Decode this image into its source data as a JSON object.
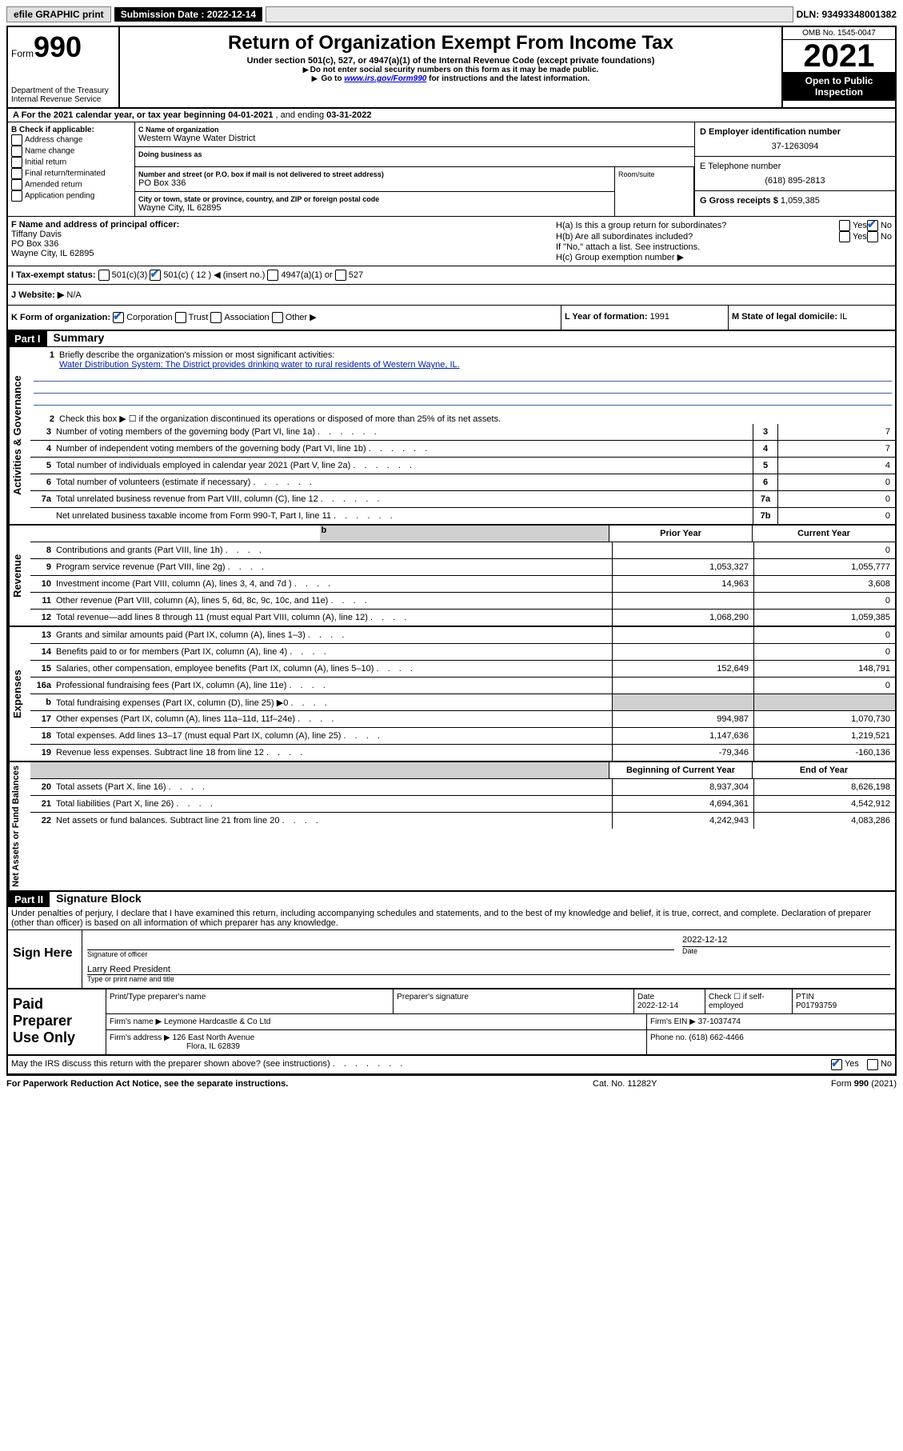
{
  "topbar": {
    "efile": "efile GRAPHIC print",
    "sub_label": "Submission Date : 2022-12-14",
    "dln": "DLN: 93493348001382"
  },
  "header": {
    "form_prefix": "Form",
    "form_num": "990",
    "dept": "Department of the Treasury",
    "irs": "Internal Revenue Service",
    "title": "Return of Organization Exempt From Income Tax",
    "sub1": "Under section 501(c), 527, or 4947(a)(1) of the Internal Revenue Code (except private foundations)",
    "sub2": "Do not enter social security numbers on this form as it may be made public.",
    "sub3_pre": "Go to ",
    "sub3_link": "www.irs.gov/Form990",
    "sub3_post": " for instructions and the latest information.",
    "omb": "OMB No. 1545-0047",
    "year": "2021",
    "open": "Open to Public Inspection"
  },
  "row_a": {
    "label": "A For the 2021 calendar year, or tax year beginning ",
    "begin": "04-01-2021",
    "mid": " , and ending ",
    "end": "03-31-2022"
  },
  "b": {
    "label": "B Check if applicable:",
    "opts": [
      "Address change",
      "Name change",
      "Initial return",
      "Final return/terminated",
      "Amended return",
      "Application pending"
    ]
  },
  "c": {
    "name_label": "C Name of organization",
    "name": "Western Wayne Water District",
    "dba_label": "Doing business as",
    "street_label": "Number and street (or P.O. box if mail is not delivered to street address)",
    "room_label": "Room/suite",
    "street": "PO Box 336",
    "city_label": "City or town, state or province, country, and ZIP or foreign postal code",
    "city": "Wayne City, IL  62895"
  },
  "d": {
    "label": "D Employer identification number",
    "ein": "37-1263094"
  },
  "e": {
    "label": "E Telephone number",
    "tel": "(618) 895-2813"
  },
  "g": {
    "label": "G Gross receipts $ ",
    "val": "1,059,385"
  },
  "f": {
    "label": "F Name and address of principal officer:",
    "name": "Tiffany Davis",
    "addr1": "PO Box 336",
    "addr2": "Wayne City, IL  62895"
  },
  "h": {
    "a_label": "H(a)  Is this a group return for subordinates?",
    "b_label": "H(b)  Are all subordinates included?",
    "b_note": "If \"No,\" attach a list. See instructions.",
    "c_label": "H(c)  Group exemption number ▶"
  },
  "i": {
    "label": "I  Tax-exempt status:",
    "opt1": "501(c)(3)",
    "opt2": "501(c) ( 12 ) ◀ (insert no.)",
    "opt3": "4947(a)(1) or",
    "opt4": "527"
  },
  "j": {
    "label": "J  Website: ▶",
    "val": "N/A"
  },
  "k": {
    "label": "K Form of organization:",
    "opts": [
      "Corporation",
      "Trust",
      "Association",
      "Other ▶"
    ]
  },
  "l": {
    "label": "L Year of formation: ",
    "val": "1991"
  },
  "m": {
    "label": "M State of legal domicile: ",
    "val": "IL"
  },
  "part1": {
    "header": "Part I",
    "title": "Summary",
    "side_gov": "Activities & Governance",
    "side_rev": "Revenue",
    "side_exp": "Expenses",
    "side_net": "Net Assets or Fund Balances",
    "l1_label": "Briefly describe the organization's mission or most significant activities:",
    "l1_text": "Water Distribution System: The District provides drinking water to rural residents of Western Wayne, IL.",
    "l2": "Check this box ▶ ☐  if the organization discontinued its operations or disposed of more than 25% of its net assets.",
    "lines_single": [
      {
        "n": "3",
        "t": "Number of voting members of the governing body (Part VI, line 1a)",
        "box": "3",
        "v": "7"
      },
      {
        "n": "4",
        "t": "Number of independent voting members of the governing body (Part VI, line 1b)",
        "box": "4",
        "v": "7"
      },
      {
        "n": "5",
        "t": "Total number of individuals employed in calendar year 2021 (Part V, line 2a)",
        "box": "5",
        "v": "4"
      },
      {
        "n": "6",
        "t": "Total number of volunteers (estimate if necessary)",
        "box": "6",
        "v": "0"
      },
      {
        "n": "7a",
        "t": "Total unrelated business revenue from Part VIII, column (C), line 12",
        "box": "7a",
        "v": "0"
      },
      {
        "n": "",
        "t": "Net unrelated business taxable income from Form 990-T, Part I, line 11",
        "box": "7b",
        "v": "0"
      }
    ],
    "col_prior": "Prior Year",
    "col_current": "Current Year",
    "lines_rev": [
      {
        "n": "8",
        "t": "Contributions and grants (Part VIII, line 1h)",
        "p": "",
        "c": "0"
      },
      {
        "n": "9",
        "t": "Program service revenue (Part VIII, line 2g)",
        "p": "1,053,327",
        "c": "1,055,777"
      },
      {
        "n": "10",
        "t": "Investment income (Part VIII, column (A), lines 3, 4, and 7d )",
        "p": "14,963",
        "c": "3,608"
      },
      {
        "n": "11",
        "t": "Other revenue (Part VIII, column (A), lines 5, 6d, 8c, 9c, 10c, and 11e)",
        "p": "",
        "c": "0"
      },
      {
        "n": "12",
        "t": "Total revenue—add lines 8 through 11 (must equal Part VIII, column (A), line 12)",
        "p": "1,068,290",
        "c": "1,059,385"
      }
    ],
    "lines_exp": [
      {
        "n": "13",
        "t": "Grants and similar amounts paid (Part IX, column (A), lines 1–3)",
        "p": "",
        "c": "0"
      },
      {
        "n": "14",
        "t": "Benefits paid to or for members (Part IX, column (A), line 4)",
        "p": "",
        "c": "0"
      },
      {
        "n": "15",
        "t": "Salaries, other compensation, employee benefits (Part IX, column (A), lines 5–10)",
        "p": "152,649",
        "c": "148,791"
      },
      {
        "n": "16a",
        "t": "Professional fundraising fees (Part IX, column (A), line 11e)",
        "p": "",
        "c": "0"
      },
      {
        "n": "b",
        "t": "Total fundraising expenses (Part IX, column (D), line 25) ▶0",
        "p": "SHADE",
        "c": "SHADE"
      },
      {
        "n": "17",
        "t": "Other expenses (Part IX, column (A), lines 11a–11d, 11f–24e)",
        "p": "994,987",
        "c": "1,070,730"
      },
      {
        "n": "18",
        "t": "Total expenses. Add lines 13–17 (must equal Part IX, column (A), line 25)",
        "p": "1,147,636",
        "c": "1,219,521"
      },
      {
        "n": "19",
        "t": "Revenue less expenses. Subtract line 18 from line 12",
        "p": "-79,346",
        "c": "-160,136"
      }
    ],
    "col_begin": "Beginning of Current Year",
    "col_end": "End of Year",
    "lines_net": [
      {
        "n": "20",
        "t": "Total assets (Part X, line 16)",
        "p": "8,937,304",
        "c": "8,626,198"
      },
      {
        "n": "21",
        "t": "Total liabilities (Part X, line 26)",
        "p": "4,694,361",
        "c": "4,542,912"
      },
      {
        "n": "22",
        "t": "Net assets or fund balances. Subtract line 21 from line 20",
        "p": "4,242,943",
        "c": "4,083,286"
      }
    ]
  },
  "part2": {
    "header": "Part II",
    "title": "Signature Block",
    "decl": "Under penalties of perjury, I declare that I have examined this return, including accompanying schedules and statements, and to the best of my knowledge and belief, it is true, correct, and complete. Declaration of preparer (other than officer) is based on all information of which preparer has any knowledge.",
    "sign_here": "Sign Here",
    "sig_officer": "Signature of officer",
    "sig_date": "2022-12-12",
    "date_label": "Date",
    "officer_name": "Larry Reed  President",
    "name_label": "Type or print name and title",
    "paid_prep": "Paid Preparer Use Only",
    "prep_name_label": "Print/Type preparer's name",
    "prep_sig_label": "Preparer's signature",
    "prep_date_label": "Date",
    "prep_date": "2022-12-14",
    "check_self": "Check ☐ if self-employed",
    "ptin_label": "PTIN",
    "ptin": "P01793759",
    "firm_name_label": "Firm's name      ▶",
    "firm_name": "Leymone Hardcastle & Co Ltd",
    "firm_ein_label": "Firm's EIN ▶",
    "firm_ein": "37-1037474",
    "firm_addr_label": "Firm's address ▶",
    "firm_addr1": "126 East North Avenue",
    "firm_addr2": "Flora, IL  62839",
    "phone_label": "Phone no. ",
    "phone": "(618) 662-4466",
    "may_irs": "May the IRS discuss this return with the preparer shown above? (see instructions)"
  },
  "footer": {
    "left": "For Paperwork Reduction Act Notice, see the separate instructions.",
    "mid": "Cat. No. 11282Y",
    "right": "Form 990 (2021)"
  }
}
